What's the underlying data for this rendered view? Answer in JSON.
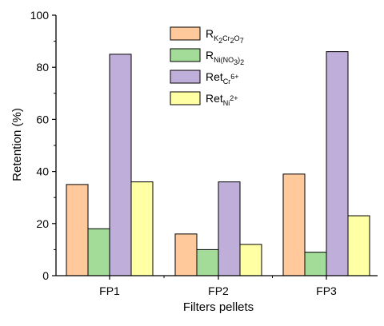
{
  "chart_data": {
    "type": "bar",
    "xlabel": "Filters pellets",
    "ylabel": "Retention (%)",
    "ylim": [
      0,
      100
    ],
    "yticks": [
      0,
      20,
      40,
      60,
      80,
      100
    ],
    "categories": [
      "FP1",
      "FP2",
      "FP3"
    ],
    "legend_position": "top-center",
    "grid": false,
    "series": [
      {
        "name": "R",
        "name_sub": "K2Cr2O7",
        "name_sub_parts": [
          [
            "K",
            ""
          ],
          [
            "2",
            "s"
          ],
          [
            "Cr",
            ""
          ],
          [
            "2",
            "s"
          ],
          [
            "O",
            ""
          ],
          [
            "7",
            "s"
          ]
        ],
        "color": "#FFC99B",
        "values": [
          35,
          16,
          39
        ]
      },
      {
        "name": "R",
        "name_sub": "Ni(NO3)2",
        "name_sub_parts": [
          [
            "Ni(NO",
            ""
          ],
          [
            "3",
            "s"
          ],
          [
            ")",
            ""
          ],
          [
            "2",
            "s"
          ]
        ],
        "color": "#A3DC99",
        "values": [
          18,
          10,
          9
        ]
      },
      {
        "name": "Ret",
        "name_sub": "Cr6+",
        "name_sub_parts": [
          [
            "Cr",
            ""
          ],
          [
            "6+",
            "p"
          ]
        ],
        "color": "#BFAEDA",
        "values": [
          85,
          36,
          86
        ]
      },
      {
        "name": "Ret",
        "name_sub": "Ni2+",
        "name_sub_parts": [
          [
            "Ni",
            ""
          ],
          [
            "2+",
            "p"
          ]
        ],
        "color": "#FFFFA3",
        "values": [
          36,
          12,
          23
        ]
      }
    ]
  }
}
